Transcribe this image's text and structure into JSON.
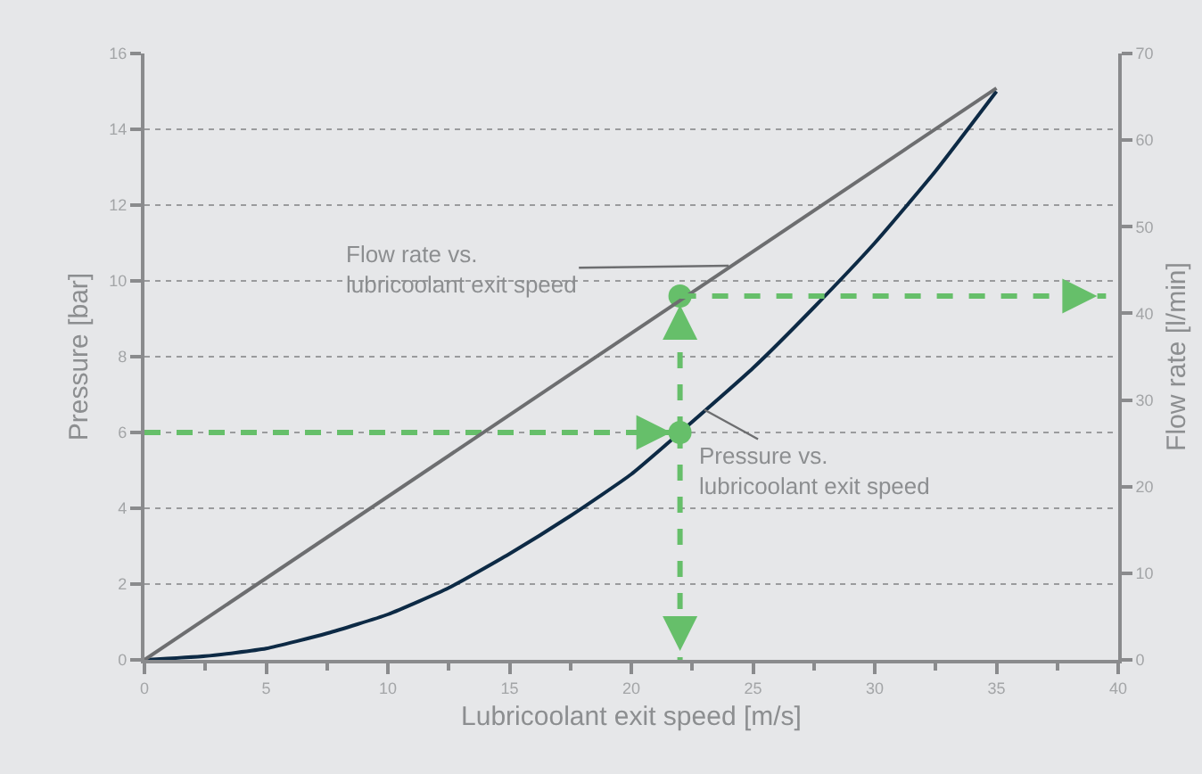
{
  "chart_data": {
    "type": "line",
    "xlabel": "Lubricoolant exit speed [m/s]",
    "ylabel": "Pressure [bar]",
    "y2label": "Flow rate [l/min]",
    "xlim": [
      0,
      40
    ],
    "xticks": [
      0,
      5,
      10,
      15,
      20,
      25,
      30,
      35,
      40
    ],
    "ylim": [
      0,
      16
    ],
    "yticks": [
      0,
      2,
      4,
      6,
      8,
      10,
      12,
      14,
      16
    ],
    "y2lim": [
      0,
      70
    ],
    "y2ticks": [
      0,
      10,
      20,
      30,
      40,
      50,
      60,
      70
    ],
    "grid": "y",
    "series": [
      {
        "axis": "y2",
        "color": "#6d6e70",
        "x": [
          0,
          35
        ],
        "values": [
          0,
          66
        ]
      },
      {
        "color": "#0d2a45",
        "x": [
          0,
          2.5,
          5,
          7.5,
          10,
          12.5,
          15,
          17.5,
          20,
          22,
          25,
          27.5,
          30,
          32.5,
          35
        ],
        "values": [
          0,
          0.1,
          0.3,
          0.7,
          1.2,
          1.9,
          2.8,
          3.8,
          4.9,
          6,
          7.7,
          9.3,
          11,
          12.9,
          15
        ]
      },
      {
        "line_style": "dashed",
        "color": "#66bf6a",
        "x": [
          0,
          22
        ],
        "values": [
          6,
          6
        ]
      },
      {
        "line_style": "dashed",
        "color": "#66bf6a",
        "x": [
          22,
          22
        ],
        "values": [
          6,
          0
        ]
      },
      {
        "line_style": "dashed",
        "color": "#66bf6a",
        "x": [
          22,
          22
        ],
        "values": [
          6,
          9.6
        ]
      },
      {
        "axis": "y2",
        "line_style": "dashed",
        "color": "#66bf6a",
        "x": [
          22,
          39.5
        ],
        "values": [
          42,
          42
        ]
      },
      {
        "type": "scatter",
        "marker": "circle",
        "color": "#66bf6a",
        "x": [
          22,
          22
        ],
        "values": [
          6,
          9.6
        ]
      }
    ],
    "annotations": [
      {
        "text": "Flow rate vs.\nlubricoolant exit speed",
        "x": 24,
        "y": 10.4
      },
      {
        "text": "Pressure vs.\nlubricoolant exit speed",
        "x": 23,
        "y": 6.6
      }
    ]
  }
}
